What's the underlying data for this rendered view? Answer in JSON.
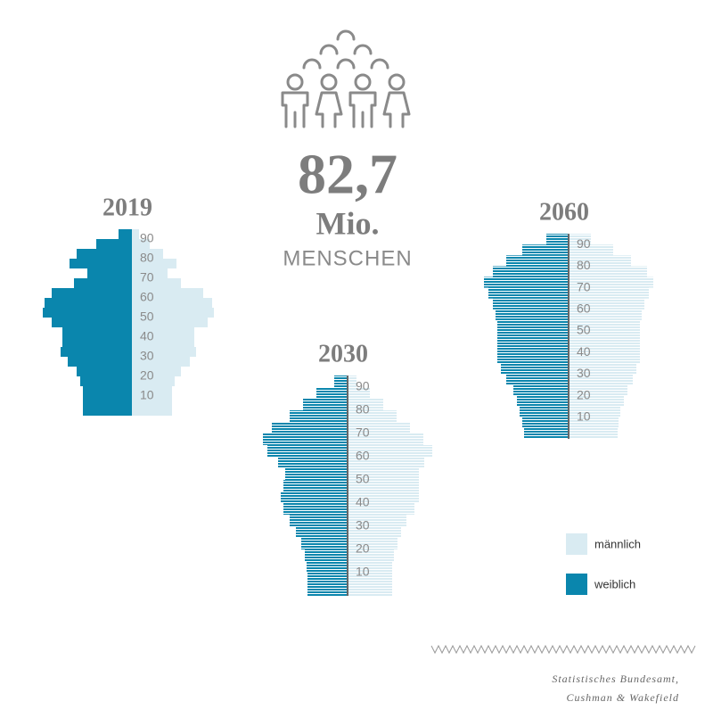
{
  "headline": {
    "number": "82,7",
    "unit": "Mio.",
    "label": "MENSCHEN"
  },
  "chart_data": {
    "type": "pyramid",
    "panels": [
      {
        "title": "2019",
        "striped": false
      },
      {
        "title": "2030",
        "striped": true
      },
      {
        "title": "2060",
        "striped": true
      }
    ],
    "y": [
      0,
      5,
      10,
      15,
      20,
      25,
      30,
      35,
      40,
      45,
      50,
      55,
      60,
      65,
      70,
      75,
      80,
      85,
      90
    ],
    "ylim": [
      0,
      95
    ],
    "yticks": [
      10,
      20,
      30,
      40,
      50,
      60,
      70,
      80,
      90
    ],
    "xlim": [
      0,
      100
    ],
    "series": [
      {
        "name": "männlich",
        "color": "#d9ebf2",
        "values": [
          [
            45,
            45,
            45,
            48,
            55,
            65,
            72,
            70,
            70,
            85,
            92,
            90,
            80,
            55,
            40,
            50,
            35,
            20,
            8
          ],
          [
            50,
            50,
            50,
            52,
            56,
            60,
            66,
            75,
            80,
            80,
            80,
            86,
            95,
            85,
            70,
            55,
            40,
            25,
            10
          ],
          [
            55,
            56,
            58,
            62,
            66,
            72,
            76,
            80,
            80,
            80,
            80,
            82,
            85,
            90,
            95,
            88,
            70,
            50,
            25
          ]
        ]
      },
      {
        "name": "weiblich",
        "color": "#0a86ad",
        "values": [
          [
            55,
            55,
            55,
            58,
            62,
            72,
            80,
            78,
            78,
            90,
            100,
            98,
            90,
            65,
            50,
            70,
            62,
            40,
            15
          ],
          [
            45,
            45,
            46,
            48,
            52,
            58,
            65,
            72,
            75,
            72,
            70,
            78,
            90,
            95,
            85,
            65,
            50,
            35,
            15
          ],
          [
            50,
            52,
            55,
            58,
            62,
            70,
            76,
            80,
            80,
            80,
            80,
            82,
            85,
            90,
            95,
            85,
            70,
            52,
            25
          ]
        ]
      }
    ]
  },
  "source": [
    "Statistisches Bundesamt,",
    "Cushman & Wakefield"
  ]
}
